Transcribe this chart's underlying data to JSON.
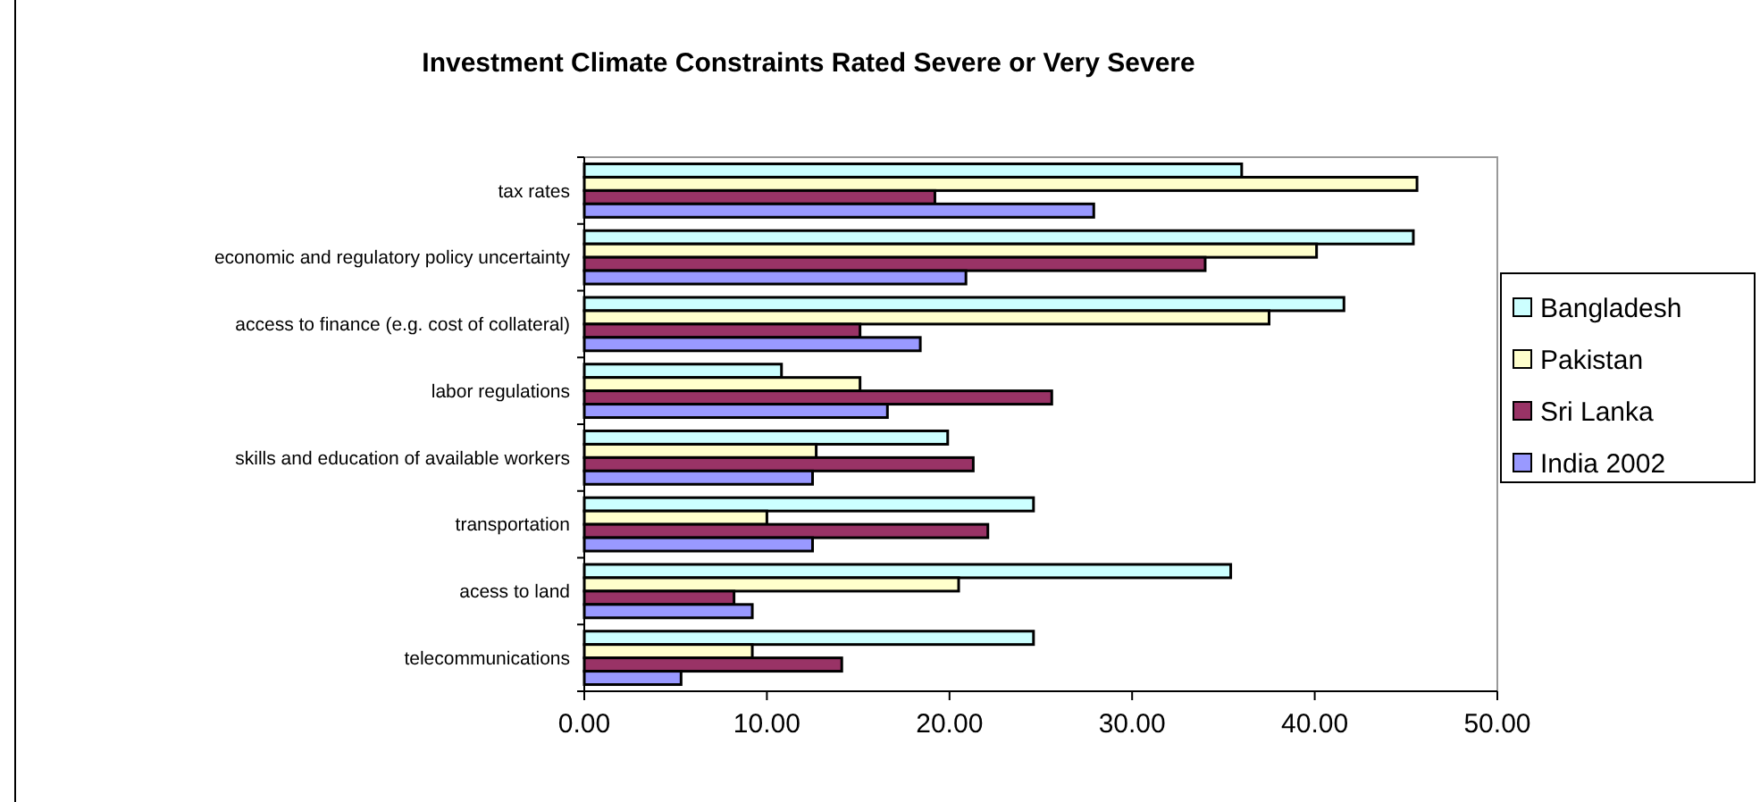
{
  "chart_data": {
    "type": "bar",
    "orientation": "horizontal",
    "title": "Investment Climate Constraints Rated Severe or Very Severe",
    "categories": [
      "tax rates",
      "economic and regulatory policy uncertainty",
      "access to finance (e.g. cost of collateral)",
      "labor regulations",
      "skills and education of available workers",
      "transportation",
      "acess to land",
      "telecommunications"
    ],
    "series": [
      {
        "name": "Bangladesh",
        "color": "#ccffff",
        "values": [
          36.0,
          45.4,
          41.6,
          10.8,
          19.9,
          24.6,
          35.4,
          24.6
        ]
      },
      {
        "name": "Pakistan",
        "color": "#ffffcc",
        "values": [
          45.6,
          40.1,
          37.5,
          15.1,
          12.7,
          10.0,
          20.5,
          9.2
        ]
      },
      {
        "name": "Sri Lanka",
        "color": "#993366",
        "values": [
          19.2,
          34.0,
          15.1,
          25.6,
          21.3,
          22.1,
          8.2,
          14.1
        ]
      },
      {
        "name": "India 2002",
        "color": "#9999ff",
        "values": [
          27.9,
          20.9,
          18.4,
          16.6,
          12.5,
          12.5,
          9.2,
          5.3
        ]
      }
    ],
    "xlim": [
      0,
      50
    ],
    "xticks": [
      {
        "value": 0,
        "label": "0.00"
      },
      {
        "value": 10,
        "label": "10.00"
      },
      {
        "value": 20,
        "label": "20.00"
      },
      {
        "value": 30,
        "label": "30.00"
      },
      {
        "value": 40,
        "label": "40.00"
      },
      {
        "value": 50,
        "label": "50.00"
      }
    ],
    "grid": false,
    "legend": "right"
  }
}
